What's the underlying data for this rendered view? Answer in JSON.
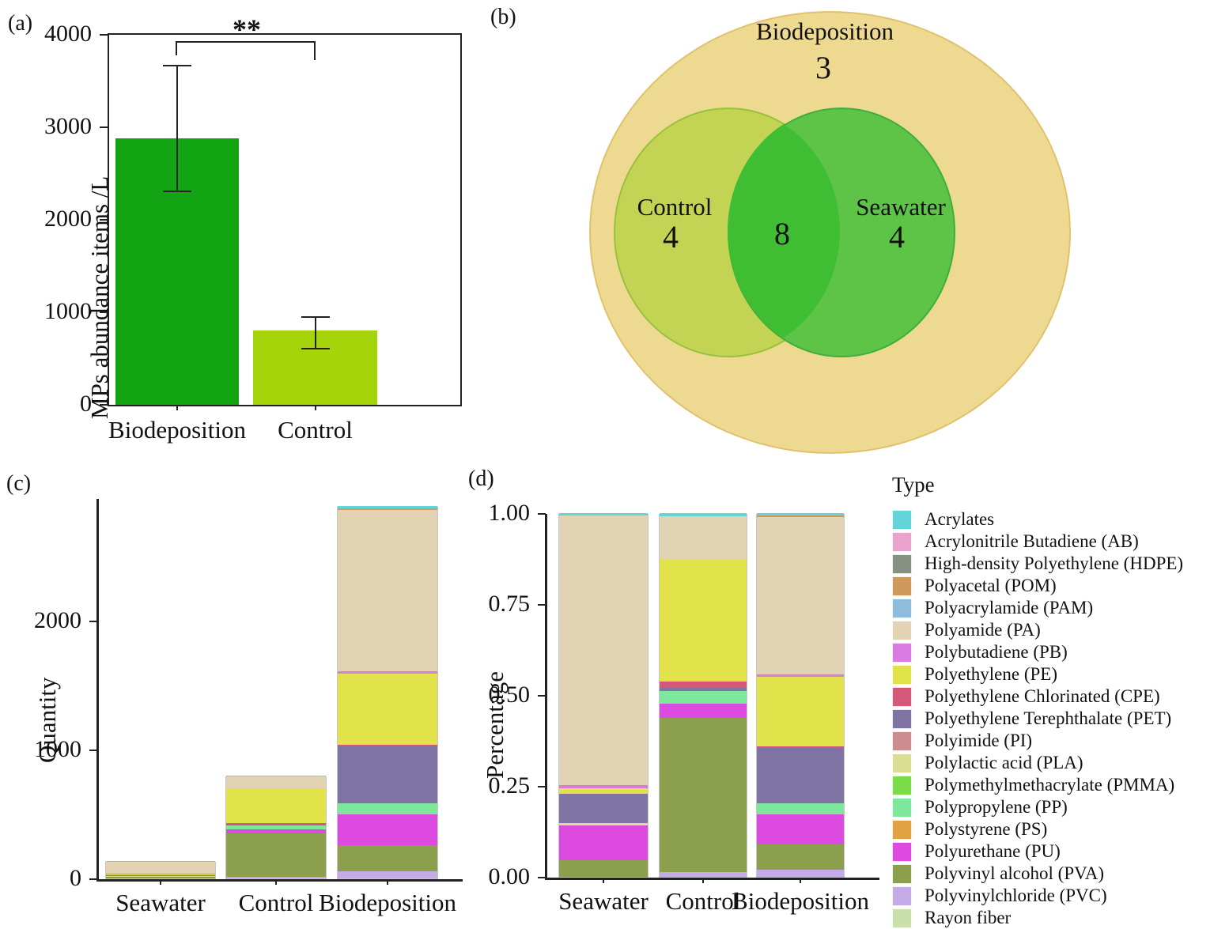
{
  "panel_tags": {
    "a": "(a)",
    "b": "(b)",
    "c": "(c)",
    "d": "(d)"
  },
  "type_legend": {
    "title": "Type",
    "items": [
      {
        "name": "Acrylates",
        "color": "#62d5d8"
      },
      {
        "name": "Acrylonitrile Butadiene (AB)",
        "color": "#e9a3cd"
      },
      {
        "name": "High-density Polyethylene (HDPE)",
        "color": "#879181"
      },
      {
        "name": "Polyacetal (POM)",
        "color": "#d0995c"
      },
      {
        "name": "Polyacrylamide (PAM)",
        "color": "#8fbbdd"
      },
      {
        "name": "Polyamide (PA)",
        "color": "#e3d3b5"
      },
      {
        "name": "Polybutadiene (PB)",
        "color": "#d97be0"
      },
      {
        "name": "Polyethylene (PE)",
        "color": "#e2e24b"
      },
      {
        "name": "Polyethylene Chlorinated (CPE)",
        "color": "#d65878"
      },
      {
        "name": "Polyethylene Terephthalate (PET)",
        "color": "#8074a5"
      },
      {
        "name": "Polyimide (PI)",
        "color": "#cb8d8d"
      },
      {
        "name": "Polylactic acid (PLA)",
        "color": "#d9de92"
      },
      {
        "name": "Polymethylmethacrylate (PMMA)",
        "color": "#7bdc49"
      },
      {
        "name": "Polypropylene (PP)",
        "color": "#7de89b"
      },
      {
        "name": "Polystyrene (PS)",
        "color": "#e2a243"
      },
      {
        "name": "Polyurethane (PU)",
        "color": "#dd4ae0"
      },
      {
        "name": "Polyvinyl alcohol (PVA)",
        "color": "#8b9f4c"
      },
      {
        "name": "Polyvinylchloride (PVC)",
        "color": "#c4abe5"
      },
      {
        "name": "Rayon fiber",
        "color": "#c9e0ab"
      }
    ]
  },
  "chart_data": [
    {
      "panel": "a",
      "type": "bar",
      "ylabel": "MPs abundance items /L",
      "categories": [
        "Biodeposition",
        "Control"
      ],
      "values": [
        2880,
        800
      ],
      "error_low": [
        2310,
        610
      ],
      "error_high": [
        3670,
        950
      ],
      "bar_colors": [
        "#12a412",
        "#a6d40a"
      ],
      "yticks": [
        0,
        1000,
        2000,
        3000,
        4000
      ],
      "ylim": [
        0,
        4000
      ],
      "significance": "**",
      "grid": false
    },
    {
      "panel": "b",
      "type": "venn",
      "sets": [
        {
          "label": "Biodeposition",
          "unique": 3
        },
        {
          "label": "Control",
          "unique": 4
        },
        {
          "label": "Seawater",
          "unique": 4
        }
      ],
      "overlap": 8,
      "colors": {
        "biodeposition": "#eed990",
        "control": "#c3d455",
        "seawater": "#5ec448",
        "overlap": "#3fbe34"
      }
    },
    {
      "panel": "c",
      "type": "bar",
      "subtype": "stacked",
      "ylabel": "Quantity",
      "categories": [
        "Seawater",
        "Control",
        "Biodeposition"
      ],
      "totals": [
        135,
        800,
        2890
      ],
      "yticks": [
        0,
        1000,
        2000
      ],
      "ylim": [
        0,
        2950
      ],
      "series": [
        {
          "name": "Acrylates",
          "values": [
            1,
            6,
            17
          ]
        },
        {
          "name": "Polyacetal (POM)",
          "values": [
            0,
            0,
            12
          ]
        },
        {
          "name": "Polyamide (PA)",
          "values": [
            100,
            94,
            1251
          ]
        },
        {
          "name": "Polybutadiene (PB)",
          "values": [
            1,
            0,
            23
          ]
        },
        {
          "name": "Polyethylene (PE)",
          "values": [
            2,
            271,
            549
          ]
        },
        {
          "name": "Polyethylene Chlorinated (CPE)",
          "values": [
            0,
            13,
            6
          ]
        },
        {
          "name": "Polyethylene Terephthalate (PET)",
          "values": [
            11,
            8,
            448
          ]
        },
        {
          "name": "Polylactic acid (PLA)",
          "values": [
            1,
            0,
            0
          ]
        },
        {
          "name": "Polypropylene (PP)",
          "values": [
            0,
            26,
            87
          ]
        },
        {
          "name": "Polyurethane (PU)",
          "values": [
            13,
            32,
            237
          ]
        },
        {
          "name": "Polyvinyl alcohol (PVA)",
          "values": [
            6,
            340,
            202
          ]
        },
        {
          "name": "Polyvinylchloride (PVC)",
          "values": [
            0,
            10,
            58
          ]
        }
      ]
    },
    {
      "panel": "d",
      "type": "bar",
      "subtype": "stacked-percent",
      "ylabel": "Percentage",
      "categories": [
        "Seawater",
        "Control",
        "Biodeposition"
      ],
      "yticks": [
        0,
        0.25,
        0.5,
        0.75,
        1
      ],
      "ytick_labels": [
        "0.00",
        "0.25",
        "0.50",
        "0.75",
        "1.00"
      ],
      "ylim": [
        0,
        1
      ],
      "series": [
        {
          "name": "Acrylates",
          "values": [
            0.007,
            0.008,
            0.006
          ]
        },
        {
          "name": "Polyacetal (POM)",
          "values": [
            0,
            0,
            0.004
          ]
        },
        {
          "name": "Polyamide (PA)",
          "values": [
            0.741,
            0.117,
            0.433
          ]
        },
        {
          "name": "Polybutadiene (PB)",
          "values": [
            0.008,
            0,
            0.008
          ]
        },
        {
          "name": "Polyethylene (PE)",
          "values": [
            0.015,
            0.339,
            0.19
          ]
        },
        {
          "name": "Polyethylene Chlorinated (CPE)",
          "values": [
            0,
            0.016,
            0.002
          ]
        },
        {
          "name": "Polyethylene Terephthalate (PET)",
          "values": [
            0.081,
            0.01,
            0.155
          ]
        },
        {
          "name": "Polylactic acid (PLA)",
          "values": [
            0.007,
            0,
            0
          ]
        },
        {
          "name": "Polypropylene (PP)",
          "values": [
            0,
            0.033,
            0.03
          ]
        },
        {
          "name": "Polyurethane (PU)",
          "values": [
            0.096,
            0.04,
            0.082
          ]
        },
        {
          "name": "Polyvinyl alcohol (PVA)",
          "values": [
            0.045,
            0.425,
            0.07
          ]
        },
        {
          "name": "Polyvinylchloride (PVC)",
          "values": [
            0,
            0.012,
            0.02
          ]
        }
      ]
    }
  ]
}
